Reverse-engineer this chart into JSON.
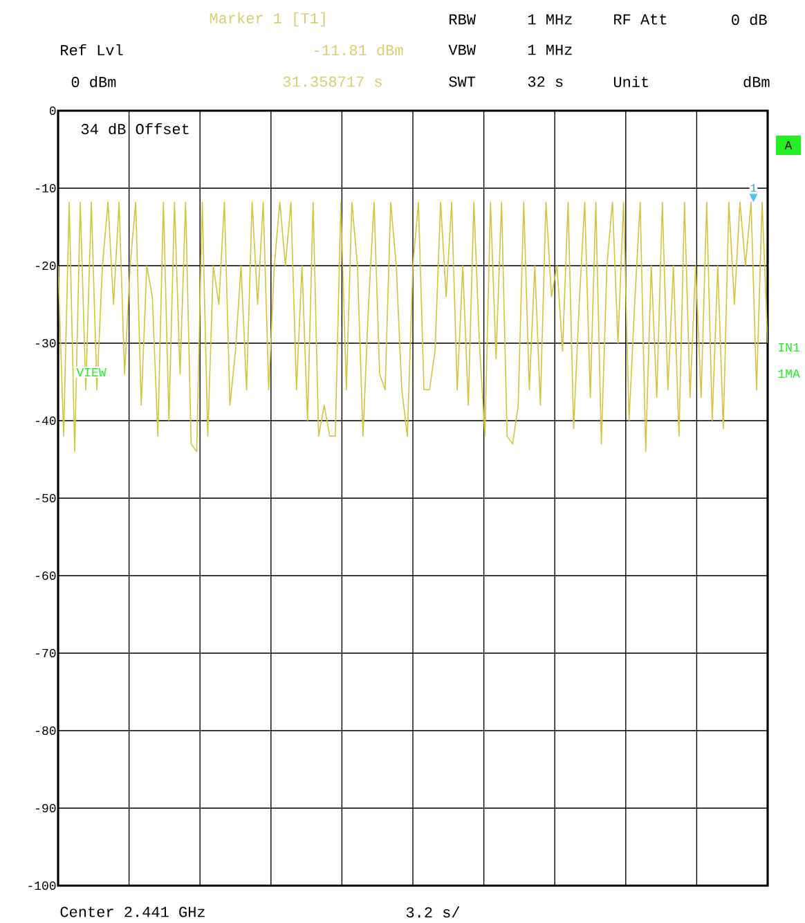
{
  "chart_data": {
    "type": "line",
    "annotations": [
      "Marker 1 [T1]",
      "-11.81 dBm",
      "31.358717 s",
      "RBW",
      "1 MHz",
      "RF Att",
      "0 dB",
      "Ref Lvl",
      "VBW",
      "1 MHz",
      "0 dBm",
      "SWT",
      "32 s",
      "Unit",
      "dBm",
      "34 dB Offset",
      "A",
      "IN1",
      "1MA",
      "VIEW",
      "Center 2.441 GHz",
      "3.2 s/",
      {
        "text": "1",
        "y": -11.81
      }
    ],
    "categories": [
      null,
      null,
      null,
      null,
      null,
      null,
      null,
      null,
      null,
      null,
      null,
      null,
      null,
      null,
      null,
      null,
      null,
      null,
      null,
      null,
      null,
      null,
      null,
      null,
      null,
      null,
      null,
      null,
      null,
      null,
      null,
      null,
      null,
      null,
      null,
      null,
      null,
      null,
      null,
      null,
      null,
      null,
      null,
      null,
      null,
      null,
      null,
      null,
      null,
      null,
      null,
      null,
      null,
      null,
      null,
      null,
      null,
      null,
      null,
      null,
      null,
      null,
      null,
      null,
      null,
      null,
      null,
      null,
      null,
      null,
      null,
      null,
      null,
      null,
      null,
      null,
      null,
      null,
      null,
      null,
      null,
      null,
      null,
      null,
      null,
      null,
      null,
      null,
      null,
      null,
      null,
      null,
      null,
      null,
      null,
      null,
      null,
      null,
      null,
      null,
      null,
      null,
      null,
      null,
      null,
      null,
      null,
      null,
      null,
      null,
      null,
      null,
      null,
      null,
      null,
      null,
      null,
      null,
      null,
      null,
      null,
      null,
      null,
      null,
      null,
      null,
      null,
      null,
      null
    ],
    "series": [
      {
        "color": "#d4c43a",
        "values": [
          -20,
          -42,
          -11.8,
          -44,
          -11.8,
          -36,
          -11.8,
          -36,
          -20,
          -11.8,
          -25,
          -11.8,
          -34,
          -20,
          -11.8,
          -38,
          -20,
          -24,
          -42,
          -11.8,
          -40,
          -11.8,
          -34,
          -11.8,
          -43,
          -44,
          -11.8,
          -42,
          -20,
          -25,
          -11.8,
          -38,
          -31,
          -20,
          -36,
          -11.8,
          -25,
          -11.8,
          -36,
          -20,
          -11.8,
          -20,
          -11.8,
          -36,
          -20,
          -40,
          -11.8,
          -42,
          -38,
          -42,
          -42,
          -11.8,
          -36,
          -11.8,
          -20,
          -42,
          -25,
          -11.8,
          -34,
          -36,
          -11.8,
          -20,
          -36,
          -42,
          -20,
          -11.8,
          -36,
          -36,
          -31,
          -11.8,
          -24,
          -11.8,
          -36,
          -20,
          -38,
          -11.8,
          -30,
          -42,
          -11.8,
          -32,
          -11.8,
          -42,
          -43,
          -38,
          -11.8,
          -36,
          -20,
          -38,
          -11.8,
          -24,
          -20,
          -31,
          -11.8,
          -41,
          -25,
          -11.8,
          -37,
          -11.8,
          -43,
          -20,
          -11.8,
          -30,
          -11.8,
          -40,
          -25,
          -11.8,
          -44,
          -20,
          -37,
          -11.8,
          -36,
          -20,
          -42,
          -11.8,
          -37,
          -20,
          -37,
          -11.8,
          -40,
          -20,
          -41,
          -11.8,
          -25,
          -11.8,
          -20,
          -11.8,
          -36,
          -11.8,
          -30
        ]
      }
    ],
    "ylim": [
      -100,
      0
    ],
    "yticks": [
      -100,
      -90,
      -80,
      -70,
      -60,
      -50,
      -40,
      -30,
      -20,
      -10,
      0
    ],
    "tick_labels": "y",
    "grid": true,
    "marker": "none",
    "line_style": "solid"
  }
}
